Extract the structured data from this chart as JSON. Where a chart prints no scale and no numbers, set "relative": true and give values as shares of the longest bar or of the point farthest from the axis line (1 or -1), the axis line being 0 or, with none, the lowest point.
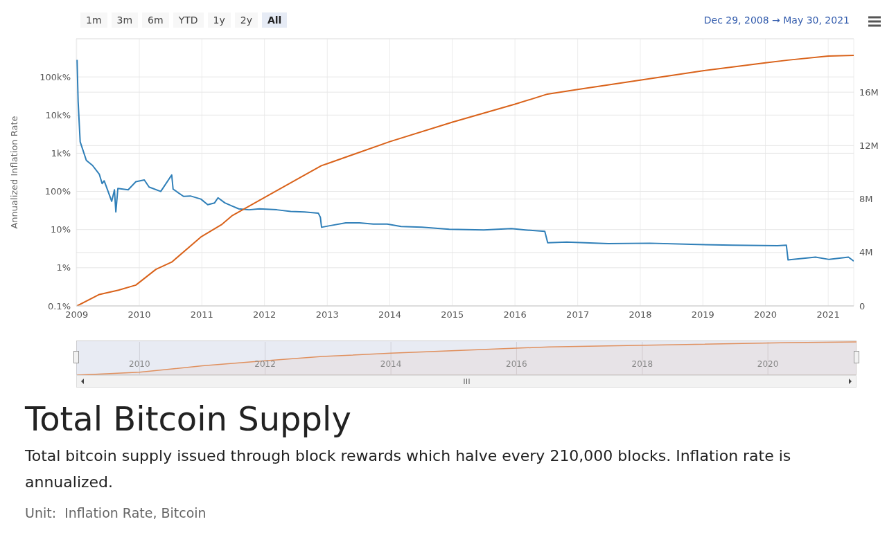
{
  "chart_data": [
    {
      "type": "line",
      "title": "Total Bitcoin Supply",
      "subtitle": "Total bitcoin supply issued through block rewards which halve every 210,000 blocks. Inflation rate is annualized.",
      "ylabel": "Annualized Inflation Rate",
      "annotations": [
        "1m",
        "3m",
        "6m",
        "YTD",
        "1y",
        "2y",
        "All",
        "Dec 29, 2008 → May 30, 2021",
        "Unit:  Inflation Rate, Bitcoin"
      ],
      "log": "y",
      "grid": true,
      "xlim": [
        "2008-12-29",
        "2021-05-30"
      ],
      "xticks": [
        {
          "value": "2009-01-01",
          "label": "2009"
        },
        {
          "value": "2010-01-01",
          "label": "2010"
        },
        {
          "value": "2011-01-01",
          "label": "2011"
        },
        {
          "value": "2012-01-01",
          "label": "2012"
        },
        {
          "value": "2013-01-01",
          "label": "2013"
        },
        {
          "value": "2014-01-01",
          "label": "2014"
        },
        {
          "value": "2015-01-01",
          "label": "2015"
        },
        {
          "value": "2016-01-01",
          "label": "2016"
        },
        {
          "value": "2017-01-01",
          "label": "2017"
        },
        {
          "value": "2018-01-01",
          "label": "2018"
        },
        {
          "value": "2019-01-01",
          "label": "2019"
        },
        {
          "value": "2020-01-01",
          "label": "2020"
        },
        {
          "value": "2021-01-01",
          "label": "2021"
        }
      ],
      "ylim": [
        0.1,
        1000000
      ],
      "yticks": [
        {
          "value": 0.1,
          "label": "0.1%"
        },
        {
          "value": 1,
          "label": "1%"
        },
        {
          "value": 10,
          "label": "10%"
        },
        {
          "value": 100,
          "label": "100%"
        },
        {
          "value": 1000,
          "label": "1k%"
        },
        {
          "value": 10000,
          "label": "10k%"
        },
        {
          "value": 100000,
          "label": "100k%"
        },
        {
          "value": 1000000,
          "label": null
        }
      ],
      "y2lim": [
        0,
        20000000
      ],
      "y2ticks": [
        {
          "value": 0,
          "label": "0"
        },
        {
          "value": 4000000,
          "label": "4M"
        },
        {
          "value": 8000000,
          "label": "8M"
        },
        {
          "value": 12000000,
          "label": "12M"
        },
        {
          "value": 16000000,
          "label": "16M"
        },
        {
          "value": 20000000,
          "label": null
        }
      ],
      "series": [
        {
          "color": "#2f7fb8",
          "x": [
            "2009-01-03",
            "2009-01-09",
            "2009-01-21",
            "2009-02-26",
            "2009-04-03",
            "2009-05-13",
            "2009-05-29",
            "2009-06-10",
            "2009-07-24",
            "2009-08-09",
            "2009-08-17",
            "2009-08-29",
            "2009-10-28",
            "2009-12-12",
            "2010-01-30",
            "2010-02-27",
            "2010-05-06",
            "2010-07-09",
            "2010-07-17",
            "2010-09-16",
            "2010-10-26",
            "2010-12-26",
            "2011-02-04",
            "2011-03-16",
            "2011-04-05",
            "2011-05-15",
            "2011-06-28",
            "2011-08-04",
            "2011-10-03",
            "2011-12-02",
            "2012-03-13",
            "2012-06-02",
            "2012-08-21",
            "2012-11-10",
            "2012-11-22",
            "2012-11-29",
            "2013-01-10",
            "2013-04-19",
            "2013-07-08",
            "2013-09-27",
            "2013-12-17",
            "2014-03-08",
            "2014-07-07",
            "2014-12-14",
            "2015-07-03",
            "2015-12-11",
            "2016-03-01",
            "2016-06-23",
            "2016-07-10",
            "2016-10-29",
            "2017-06-28",
            "2018-02-25",
            "2018-10-24",
            "2019-06-23",
            "2020-03-11",
            "2020-05-02",
            "2020-05-12",
            "2020-10-19",
            "2021-01-07",
            "2021-04-29",
            "2021-05-30"
          ],
          "values": [
            280000,
            23000,
            2000,
            650,
            480,
            280,
            160,
            190,
            55,
            110,
            29,
            120,
            110,
            180,
            200,
            130,
            100,
            270,
            115,
            74,
            76,
            63,
            45,
            50,
            68,
            50,
            41,
            35,
            33,
            35,
            33,
            30,
            29,
            27,
            21,
            11.5,
            12.5,
            15,
            15,
            14,
            14,
            12,
            11.6,
            10.2,
            9.8,
            10.6,
            9.8,
            9.0,
            4.5,
            4.7,
            4.3,
            4.4,
            4.1,
            3.9,
            3.8,
            3.9,
            1.6,
            1.9,
            1.65,
            1.9,
            1.5
          ]
        },
        {
          "color": "#d9621a",
          "axis": "y2",
          "x": [
            "2009-01-03",
            "2009-05-13",
            "2009-09-01",
            "2009-12-12",
            "2010-04-08",
            "2010-07-09",
            "2010-12-26",
            "2011-04-25",
            "2011-06-28",
            "2012-01-01",
            "2012-11-28",
            "2013-01-01",
            "2014-01-01",
            "2015-01-01",
            "2016-01-01",
            "2016-07-09",
            "2017-01-01",
            "2018-01-01",
            "2019-01-01",
            "2020-01-01",
            "2020-05-11",
            "2021-01-01",
            "2021-05-30"
          ],
          "values": [
            0,
            860000,
            1180000,
            1560000,
            2740000,
            3280000,
            5160000,
            6080000,
            6770000,
            8120000,
            10500000,
            10650000,
            12300000,
            13760000,
            15100000,
            15860000,
            16200000,
            16900000,
            17600000,
            18200000,
            18400000,
            18700000,
            18760000
          ]
        }
      ]
    },
    {
      "type": "area",
      "relative": true,
      "tick_labels": "x",
      "grid": "x",
      "xlim": [
        "2008-12-29",
        "2021-05-30"
      ],
      "xticks": [
        {
          "value": "2010-01-01",
          "label": "2010"
        },
        {
          "value": "2012-01-01",
          "label": "2012"
        },
        {
          "value": "2014-01-01",
          "label": "2014"
        },
        {
          "value": "2016-01-01",
          "label": "2016"
        },
        {
          "value": "2018-01-01",
          "label": "2018"
        },
        {
          "value": "2020-01-01",
          "label": "2020"
        }
      ],
      "series": [
        {
          "color": "#e0905e",
          "x": [
            "2009-01-03",
            "2010-01-01",
            "2011-01-01",
            "2012-01-01",
            "2012-11-28",
            "2014-01-01",
            "2016-07-09",
            "2020-05-11",
            "2021-05-30"
          ],
          "values": [
            0,
            0.09,
            0.28,
            0.43,
            0.56,
            0.66,
            0.85,
            0.98,
            1
          ]
        }
      ]
    }
  ]
}
